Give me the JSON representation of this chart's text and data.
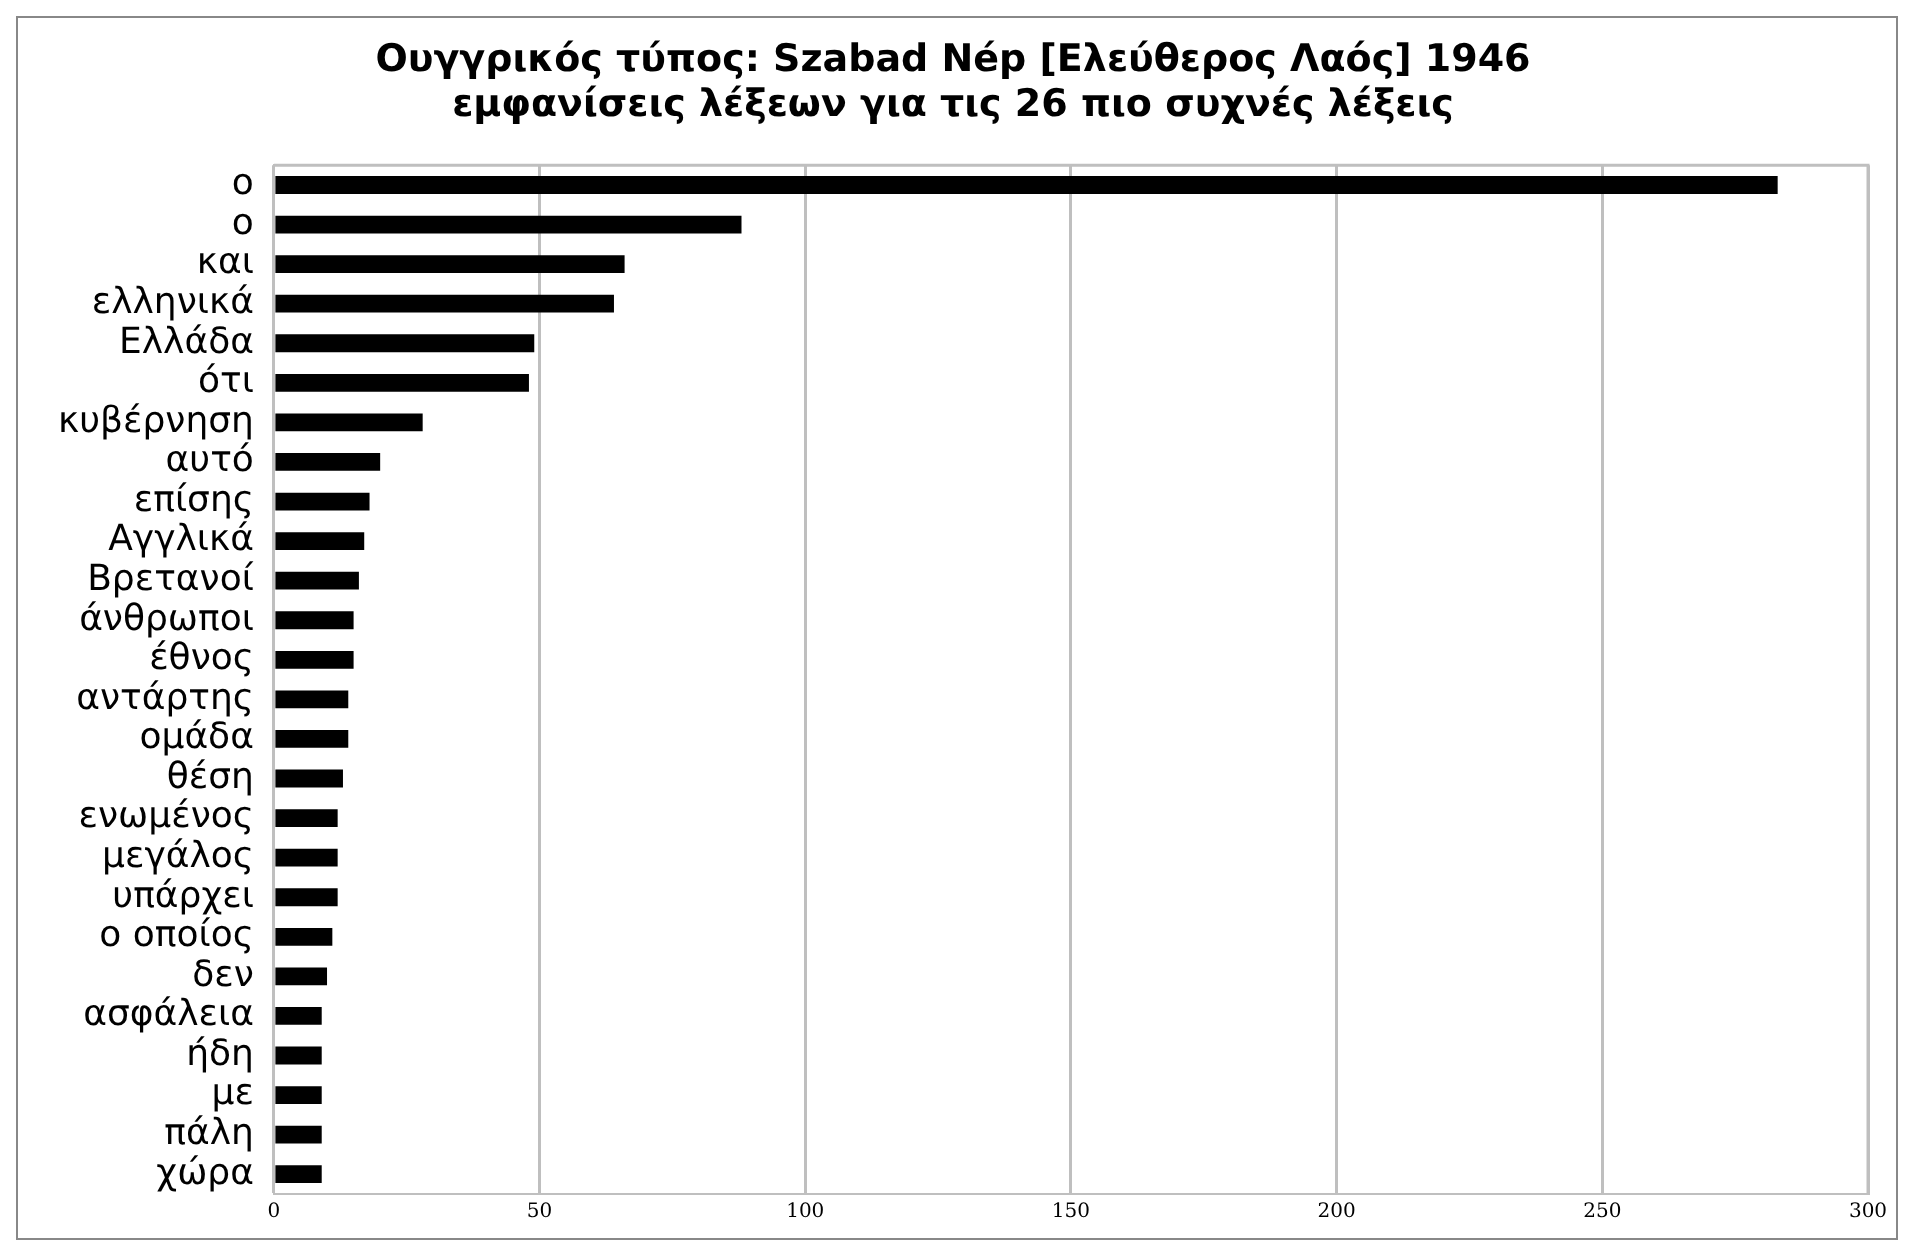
{
  "chart_data": {
    "type": "bar",
    "orientation": "horizontal",
    "title": [
      "Ουγγρικός τύπος: Szabad Nép [Ελεύθερος Λαός] 1946",
      "εμφανίσεις λέξεων για τις 26 πιο συχνές λέξεις"
    ],
    "categories": [
      "ο",
      "ο",
      "και",
      "ελληνικά",
      "Ελλάδα",
      "ότι",
      "κυβέρνηση",
      "αυτό",
      "επίσης",
      "Αγγλικά",
      "Βρετανοί",
      "άνθρωποι",
      "έθνος",
      "αντάρτης",
      "ομάδα",
      "θέση",
      "ενωμένος",
      "μεγάλος",
      "υπάρχει",
      "ο οποίος",
      "δεν",
      "ασφάλεια",
      "ήδη",
      "με",
      "πάλη",
      "χώρα"
    ],
    "values": [
      283,
      88,
      66,
      64,
      49,
      48,
      28,
      20,
      18,
      17,
      16,
      15,
      15,
      14,
      14,
      13,
      12,
      12,
      12,
      11,
      10,
      9,
      9,
      9,
      9,
      9
    ],
    "color": "#000000",
    "xlim": [
      0,
      300
    ],
    "xticks": [
      0,
      50,
      100,
      150,
      200,
      250,
      300
    ],
    "grid": "x"
  }
}
